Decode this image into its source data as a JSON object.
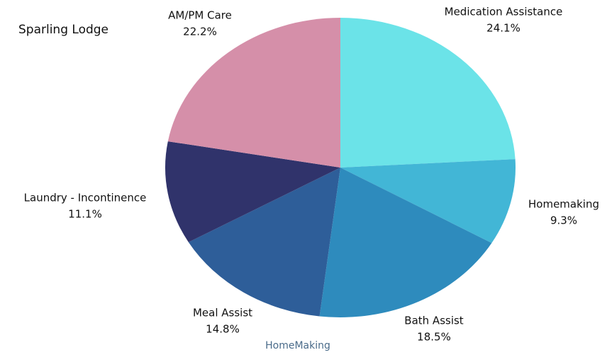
{
  "chart_data": {
    "type": "pie",
    "title": "Sparling Lodge",
    "footer": "HomeMaking",
    "categories": [
      "Medication Assistance",
      "Homemaking",
      "Bath Assist",
      "Meal Assist",
      "Laundry - Incontinence",
      "AM/PM Care"
    ],
    "values": [
      24.1,
      9.3,
      18.5,
      14.8,
      11.1,
      22.2
    ],
    "value_labels": [
      "24.1%",
      "9.3%",
      "18.5%",
      "14.8%",
      "11.1%",
      "22.2%"
    ],
    "colors": [
      "#6be3e8",
      "#42b6d6",
      "#2e8bbd",
      "#2e5e99",
      "#30336b",
      "#d58fa9"
    ]
  }
}
